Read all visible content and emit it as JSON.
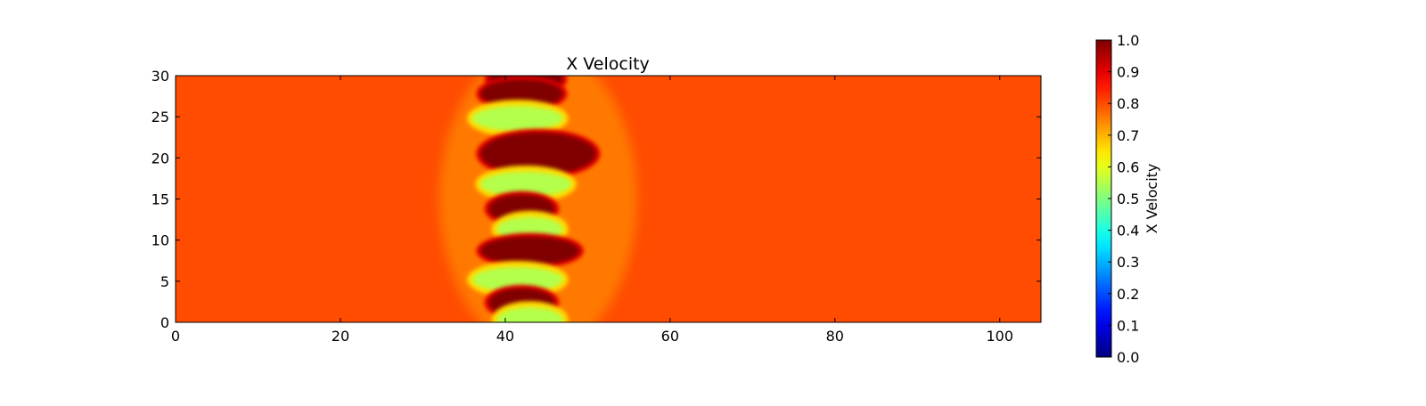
{
  "chart_data": {
    "type": "heatmap",
    "title": "X Velocity",
    "xlabel": "",
    "ylabel": "",
    "xlim": [
      0,
      105
    ],
    "ylim": [
      0,
      30
    ],
    "x_ticks": [
      "0",
      "20",
      "40",
      "60",
      "80",
      "100"
    ],
    "y_ticks": [
      "0",
      "5",
      "10",
      "15",
      "20",
      "25",
      "30"
    ],
    "colormap": "jet",
    "background_value": 0.8,
    "colorbar": {
      "label": "X Velocity",
      "range": [
        0.0,
        1.0
      ],
      "ticks": [
        "0.0",
        "0.1",
        "0.2",
        "0.3",
        "0.4",
        "0.5",
        "0.6",
        "0.7",
        "0.8",
        "0.9",
        "1.0"
      ]
    },
    "features": [
      {
        "kind": "high",
        "x": 42,
        "y": 29.6,
        "value": 1.0,
        "x_extent": [
          38,
          47
        ]
      },
      {
        "kind": "high",
        "x": 43,
        "y": 27.8,
        "value": 1.0,
        "x_extent": [
          37,
          47
        ]
      },
      {
        "kind": "low",
        "x": 42,
        "y": 24.8,
        "value": 0.55,
        "x_extent": [
          36,
          47
        ]
      },
      {
        "kind": "high",
        "x": 45,
        "y": 20.5,
        "value": 1.0,
        "x_extent": [
          37,
          51
        ]
      },
      {
        "kind": "low",
        "x": 42,
        "y": 16.8,
        "value": 0.55,
        "x_extent": [
          37,
          48
        ]
      },
      {
        "kind": "high",
        "x": 42,
        "y": 13.8,
        "value": 1.0,
        "x_extent": [
          38,
          46
        ]
      },
      {
        "kind": "low",
        "x": 42,
        "y": 11.3,
        "value": 0.55,
        "x_extent": [
          39,
          47
        ]
      },
      {
        "kind": "high",
        "x": 44,
        "y": 8.7,
        "value": 1.0,
        "x_extent": [
          37,
          49
        ]
      },
      {
        "kind": "low",
        "x": 42,
        "y": 5.2,
        "value": 0.55,
        "x_extent": [
          36,
          47
        ]
      },
      {
        "kind": "high",
        "x": 43,
        "y": 2.4,
        "value": 1.0,
        "x_extent": [
          38,
          46
        ]
      },
      {
        "kind": "low",
        "x": 43,
        "y": 0.3,
        "value": 0.55,
        "x_extent": [
          39,
          47
        ]
      }
    ]
  }
}
